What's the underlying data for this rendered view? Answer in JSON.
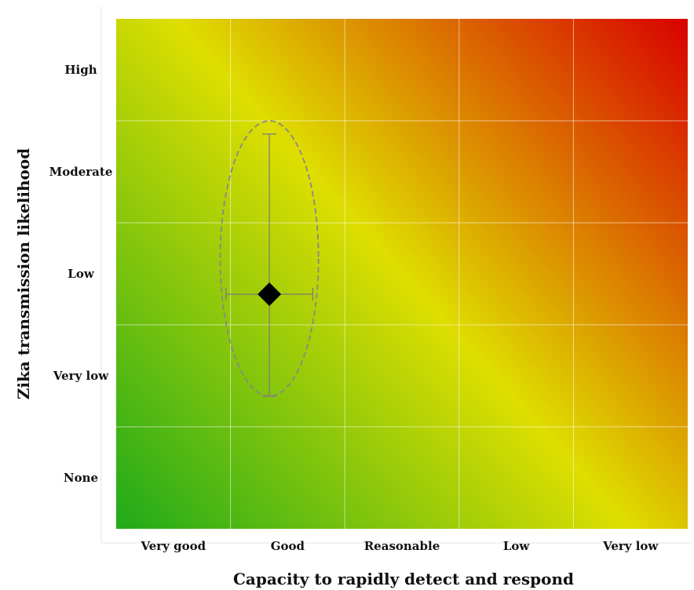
{
  "chart_data": {
    "type": "scatter",
    "xlabel": "Capacity to rapidly detect and respond",
    "ylabel": "Zika transmission likelihood",
    "x_categories": [
      "Very good",
      "Good",
      "Reasonable",
      "Low",
      "Very low"
    ],
    "y_categories": [
      "None",
      "Very low",
      "Low",
      "Moderate",
      "High"
    ],
    "xlim": [
      0,
      5
    ],
    "ylim": [
      0,
      5
    ],
    "grid": true,
    "background": "green-yellow-red risk gradient (low risk bottom-left, high risk top-right)",
    "colors": {
      "low_risk": "#1faa1a",
      "mid_risk": "#dede00",
      "high_risk": "#d80000",
      "marker": "#000000",
      "ellipse": "#888888"
    },
    "points": [
      {
        "x": 1.34,
        "y": 2.3,
        "x_err_low": 0.96,
        "x_err_high": 1.72,
        "y_err_low": 1.3,
        "y_err_high": 3.87,
        "marker": "diamond"
      }
    ],
    "uncertainty_ellipse": {
      "cx": 1.34,
      "cy": 2.65,
      "rx": 0.43,
      "ry": 1.35,
      "style": "dashed"
    }
  }
}
